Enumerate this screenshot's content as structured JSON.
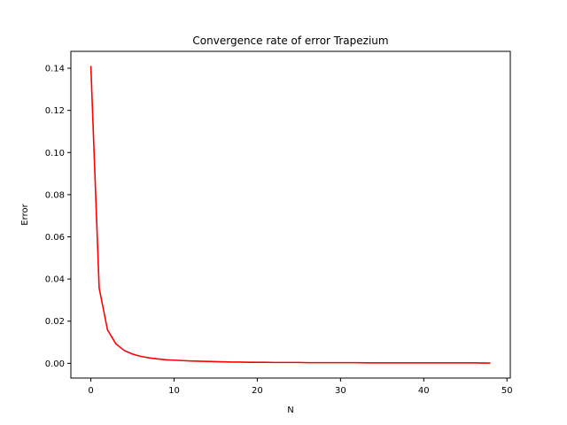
{
  "chart_data": {
    "type": "line",
    "title": "Convergence rate of error Trapezium",
    "xlabel": "N",
    "ylabel": "Error",
    "xlim": [
      -2.4,
      50.4
    ],
    "ylim": [
      -0.007,
      0.148
    ],
    "xticks": [
      0,
      10,
      20,
      30,
      40,
      50
    ],
    "xtick_labels": [
      "0",
      "10",
      "20",
      "30",
      "40",
      "50"
    ],
    "yticks": [
      0.0,
      0.02,
      0.04,
      0.06,
      0.08,
      0.1,
      0.12,
      0.14
    ],
    "ytick_labels": [
      "0.00",
      "0.02",
      "0.04",
      "0.06",
      "0.08",
      "0.10",
      "0.12",
      "0.14"
    ],
    "grid": false,
    "series": [
      {
        "color": "#ff0000",
        "x": [
          0,
          1,
          2,
          3,
          4,
          5,
          6,
          7,
          8,
          9,
          10,
          11,
          12,
          13,
          14,
          15,
          16,
          17,
          18,
          19,
          20,
          21,
          22,
          23,
          24,
          25,
          26,
          27,
          28,
          29,
          30,
          31,
          32,
          33,
          34,
          35,
          36,
          37,
          38,
          39,
          40,
          41,
          42,
          43,
          44,
          45,
          46,
          47,
          48
        ],
        "values": [
          0.1411,
          0.0357,
          0.0159,
          0.0093,
          0.0061,
          0.0044,
          0.0033,
          0.0026,
          0.0021,
          0.0017,
          0.0015,
          0.0013,
          0.0011,
          0.001,
          0.0009,
          0.0008,
          0.0007,
          0.0006,
          0.0006,
          0.0005,
          0.0005,
          0.0005,
          0.0004,
          0.0004,
          0.0004,
          0.0004,
          0.0003,
          0.0003,
          0.0003,
          0.0003,
          0.0003,
          0.0003,
          0.0003,
          0.0002,
          0.0002,
          0.0002,
          0.0002,
          0.0002,
          0.0002,
          0.0002,
          0.0002,
          0.0002,
          0.0002,
          0.0002,
          0.0002,
          0.0002,
          0.0002,
          0.0001,
          0.0001
        ]
      }
    ]
  }
}
